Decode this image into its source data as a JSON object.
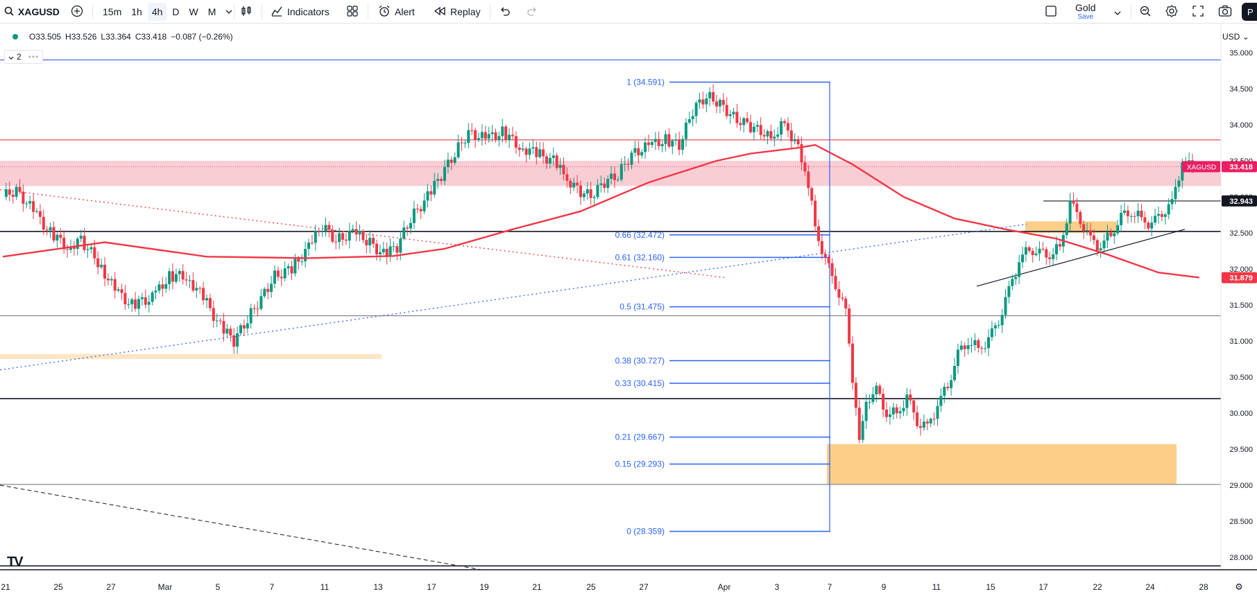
{
  "toolbar": {
    "symbol": "XAGUSD",
    "timeframes": [
      "15m",
      "1h",
      "4h",
      "D",
      "W",
      "M"
    ],
    "active_timeframe": "4h",
    "indicators_label": "Indicators",
    "alert_label": "Alert",
    "replay_label": "Replay",
    "layout_name": "Gold",
    "save_label": "Save",
    "avatar_initial": "P"
  },
  "legend": {
    "open": "O33.505",
    "high": "H33.526",
    "low": "L33.364",
    "close": "C33.418",
    "change": "−0.087 (−0.26%)",
    "collapse_count": "2"
  },
  "currency": "USD",
  "colors": {
    "up": "#089981",
    "down": "#f23645",
    "ma": "#f23645",
    "fib": "#2962ff",
    "zone_red": "#f7c5cc",
    "zone_orange": "#fbc676",
    "accent": "#2962ff"
  },
  "chart_data": {
    "type": "candlestick",
    "symbol": "XAGUSD",
    "interval": "4h",
    "y_ticks": [
      "35.000",
      "34.500",
      "34.000",
      "33.500",
      "33.000",
      "32.500",
      "32.000",
      "31.500",
      "31.000",
      "30.500",
      "30.000",
      "29.500",
      "29.000",
      "28.500",
      "28.000"
    ],
    "y_range": [
      27.7,
      35.1
    ],
    "x_ticks": [
      "21",
      "25",
      "27",
      "Mar",
      "5",
      "7",
      "11",
      "13",
      "17",
      "19",
      "21",
      "25",
      "27",
      "Apr",
      "3",
      "7",
      "9",
      "11",
      "15",
      "17",
      "22",
      "24",
      "28"
    ],
    "last_price_label": "33.418",
    "last_symbol_label": "XAGUSD",
    "level_label": "32.943",
    "ma_label": "31.879",
    "fib_levels": [
      {
        "label": "1 (34.591)",
        "price": 34.591
      },
      {
        "label": "0.66 (32.472)",
        "price": 32.472
      },
      {
        "label": "0.61 (32.160)",
        "price": 32.16
      },
      {
        "label": "0.5 (31.475)",
        "price": 31.475
      },
      {
        "label": "0.38 (30.727)",
        "price": 30.727
      },
      {
        "label": "0.33 (30.415)",
        "price": 30.415
      },
      {
        "label": "0.21 (29.667)",
        "price": 29.667
      },
      {
        "label": "0.15 (29.293)",
        "price": 29.293
      },
      {
        "label": "0 (28.359)",
        "price": 28.359
      }
    ],
    "horizontal_levels": [
      {
        "price": 34.9,
        "color": "#2962ff"
      },
      {
        "price": 33.79,
        "color": "#f23645"
      },
      {
        "price": 32.52,
        "color": "#131722"
      },
      {
        "price": 31.35,
        "color": "#787b86"
      },
      {
        "price": 30.2,
        "color": "#131722"
      },
      {
        "price": 29.01,
        "color": "#787b86"
      },
      {
        "price": 27.88,
        "color": "#131722"
      }
    ],
    "zones": [
      {
        "name": "resistance-zone",
        "top": 33.5,
        "bottom": 33.15,
        "color": "#f7c5cc"
      },
      {
        "name": "demand-zone-lower",
        "top": 29.57,
        "bottom": 29.01,
        "color": "#fbc676"
      },
      {
        "name": "demand-zone-left",
        "top": 30.82,
        "bottom": 30.75,
        "color": "#fde2b8"
      },
      {
        "name": "demand-zone-right",
        "top": 32.66,
        "bottom": 32.5,
        "color": "#fbc676"
      }
    ],
    "path": [
      [
        0,
        33.0
      ],
      [
        8,
        33.1
      ],
      [
        18,
        32.8
      ],
      [
        28,
        32.5
      ],
      [
        38,
        32.3
      ],
      [
        46,
        32.4
      ],
      [
        56,
        32.1
      ],
      [
        66,
        31.7
      ],
      [
        76,
        31.5
      ],
      [
        88,
        31.6
      ],
      [
        98,
        31.9
      ],
      [
        108,
        31.9
      ],
      [
        118,
        31.6
      ],
      [
        128,
        31.2
      ],
      [
        136,
        31.0
      ],
      [
        144,
        31.3
      ],
      [
        152,
        31.6
      ],
      [
        160,
        31.9
      ],
      [
        170,
        32.0
      ],
      [
        180,
        32.3
      ],
      [
        188,
        32.6
      ],
      [
        196,
        32.4
      ],
      [
        206,
        32.5
      ],
      [
        214,
        32.4
      ],
      [
        224,
        32.2
      ],
      [
        232,
        32.3
      ],
      [
        240,
        32.7
      ],
      [
        250,
        33.0
      ],
      [
        258,
        33.3
      ],
      [
        266,
        33.6
      ],
      [
        274,
        33.9
      ],
      [
        284,
        33.8
      ],
      [
        294,
        33.9
      ],
      [
        304,
        33.7
      ],
      [
        314,
        33.6
      ],
      [
        324,
        33.5
      ],
      [
        330,
        33.3
      ],
      [
        338,
        33.1
      ],
      [
        346,
        33.0
      ],
      [
        354,
        33.2
      ],
      [
        362,
        33.3
      ],
      [
        370,
        33.6
      ],
      [
        380,
        33.7
      ],
      [
        390,
        33.8
      ],
      [
        398,
        33.7
      ],
      [
        406,
        34.2
      ],
      [
        414,
        34.4
      ],
      [
        422,
        34.3
      ],
      [
        430,
        34.1
      ],
      [
        438,
        34.0
      ],
      [
        446,
        33.9
      ],
      [
        452,
        33.8
      ],
      [
        458,
        34.0
      ],
      [
        466,
        33.8
      ],
      [
        472,
        33.4
      ],
      [
        478,
        32.6
      ],
      [
        484,
        32.1
      ],
      [
        490,
        31.8
      ],
      [
        496,
        31.4
      ],
      [
        500,
        30.5
      ],
      [
        504,
        29.7
      ],
      [
        508,
        30.2
      ],
      [
        514,
        30.3
      ],
      [
        520,
        30.0
      ],
      [
        526,
        30.0
      ],
      [
        532,
        30.2
      ],
      [
        538,
        29.9
      ],
      [
        544,
        29.8
      ],
      [
        550,
        30.1
      ],
      [
        556,
        30.4
      ],
      [
        562,
        30.8
      ],
      [
        568,
        31.0
      ],
      [
        574,
        30.9
      ],
      [
        580,
        31.0
      ],
      [
        586,
        31.3
      ],
      [
        592,
        31.7
      ],
      [
        598,
        32.1
      ],
      [
        604,
        32.3
      ],
      [
        610,
        32.2
      ],
      [
        616,
        32.2
      ],
      [
        622,
        32.3
      ],
      [
        628,
        32.9
      ],
      [
        634,
        32.7
      ],
      [
        640,
        32.4
      ],
      [
        646,
        32.3
      ],
      [
        652,
        32.5
      ],
      [
        658,
        32.7
      ],
      [
        664,
        32.8
      ],
      [
        670,
        32.7
      ],
      [
        676,
        32.6
      ],
      [
        682,
        32.8
      ],
      [
        688,
        32.9
      ],
      [
        694,
        33.5
      ],
      [
        700,
        33.4
      ]
    ],
    "ma_series": [
      [
        0,
        32.17
      ],
      [
        60,
        32.37
      ],
      [
        120,
        32.17
      ],
      [
        180,
        32.15
      ],
      [
        230,
        32.18
      ],
      [
        260,
        32.28
      ],
      [
        300,
        32.55
      ],
      [
        340,
        32.8
      ],
      [
        380,
        33.2
      ],
      [
        420,
        33.5
      ],
      [
        440,
        33.6
      ],
      [
        468,
        33.68
      ],
      [
        478,
        33.72
      ],
      [
        500,
        33.45
      ],
      [
        530,
        33.0
      ],
      [
        560,
        32.7
      ],
      [
        590,
        32.55
      ],
      [
        620,
        32.42
      ],
      [
        650,
        32.2
      ],
      [
        680,
        31.95
      ],
      [
        704,
        31.88
      ]
    ]
  }
}
